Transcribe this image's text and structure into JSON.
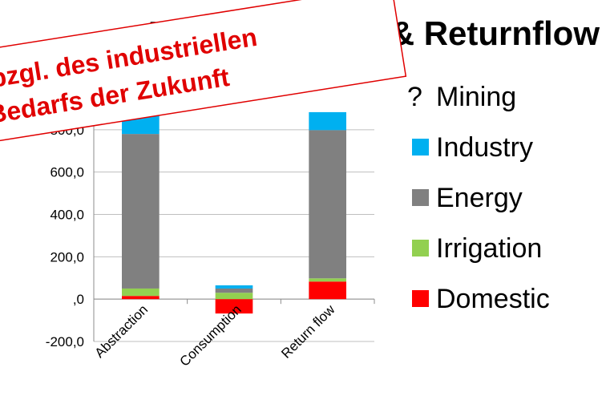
{
  "chart_data": {
    "type": "stacked-bar",
    "title": "III. Abstraction & Returnflow",
    "annotation": [
      "bzgl. des industriellen",
      "Bedarfs der Zukunft"
    ],
    "categories": [
      "Abstraction",
      "Consumption",
      "Return flow"
    ],
    "series": [
      {
        "name": "Domestic",
        "color": "#ff0000",
        "values": [
          15,
          -68,
          83
        ]
      },
      {
        "name": "Irrigation",
        "color": "#92d050",
        "values": [
          35,
          30,
          15
        ]
      },
      {
        "name": "Energy",
        "color": "#808080",
        "values": [
          730,
          20,
          700
        ]
      },
      {
        "name": "Industry",
        "color": "#00b0f0",
        "values": [
          100,
          15,
          85
        ]
      },
      {
        "name": "Mining",
        "legend_marker": "?",
        "values": [
          0,
          0,
          0
        ]
      }
    ],
    "ylim": [
      -200,
      1000
    ],
    "yticks": [
      {
        "value": -200,
        "label": "-200,0"
      },
      {
        "value": 0,
        "label": ",0"
      },
      {
        "value": 200,
        "label": "200,0"
      },
      {
        "value": 400,
        "label": "400,0"
      },
      {
        "value": 600,
        "label": "600,0"
      },
      {
        "value": 800,
        "label": "800,0"
      }
    ],
    "grid": true
  }
}
